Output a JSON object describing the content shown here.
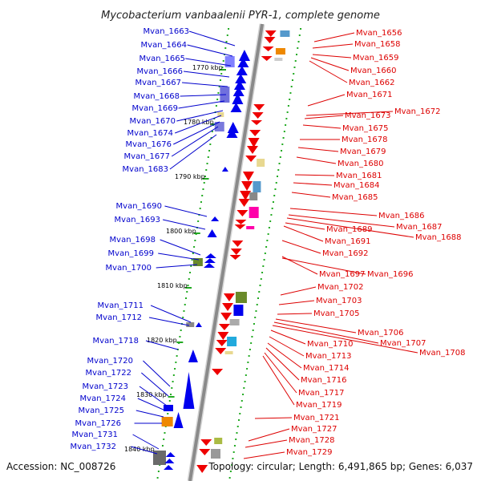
{
  "title": "Mycobacterium vanbaalenii PYR-1, complete genome",
  "accession": "Accession: NC_008726",
  "summary": "Topology: circular; Length: 6,491,865 bp; Genes: 6,037",
  "colors": {
    "left_label": "#0000cc",
    "right_label": "#dd0000",
    "backbone": "#8a8a8a",
    "tick": "#22aa22"
  },
  "kbp_labels": [
    "1770 kbp",
    "1780 kbp",
    "1790 kbp",
    "1800 kbp",
    "1810 kbp",
    "1820 kbp",
    "1830 kbp",
    "1840 kbp"
  ],
  "left_genes": [
    "Mvan_1663",
    "Mvan_1664",
    "Mvan_1665",
    "Mvan_1666",
    "Mvan_1667",
    "Mvan_1668",
    "Mvan_1669",
    "Mvan_1670",
    "Mvan_1674",
    "Mvan_1676",
    "Mvan_1677",
    "Mvan_1683",
    "Mvan_1690",
    "Mvan_1693",
    "Mvan_1698",
    "Mvan_1699",
    "Mvan_1700",
    "Mvan_1711",
    "Mvan_1712",
    "Mvan_1718",
    "Mvan_1720",
    "Mvan_1722",
    "Mvan_1723",
    "Mvan_1724",
    "Mvan_1725",
    "Mvan_1726",
    "Mvan_1731",
    "Mvan_1732"
  ],
  "right_genes": [
    "Mvan_1656",
    "Mvan_1658",
    "Mvan_1659",
    "Mvan_1660",
    "Mvan_1662",
    "Mvan_1671",
    "Mvan_1672",
    "Mvan_1673",
    "Mvan_1675",
    "Mvan_1678",
    "Mvan_1679",
    "Mvan_1680",
    "Mvan_1681",
    "Mvan_1684",
    "Mvan_1685",
    "Mvan_1686",
    "Mvan_1687",
    "Mvan_1688",
    "Mvan_1689",
    "Mvan_1691",
    "Mvan_1692",
    "Mvan_1697",
    "Mvan_1696",
    "Mvan_1702",
    "Mvan_1703",
    "Mvan_1705",
    "Mvan_1706",
    "Mvan_1707",
    "Mvan_1708",
    "Mvan_1710",
    "Mvan_1713",
    "Mvan_1714",
    "Mvan_1716",
    "Mvan_1717",
    "Mvan_1719",
    "Mvan_1721",
    "Mvan_1727",
    "Mvan_1728",
    "Mvan_1729"
  ]
}
